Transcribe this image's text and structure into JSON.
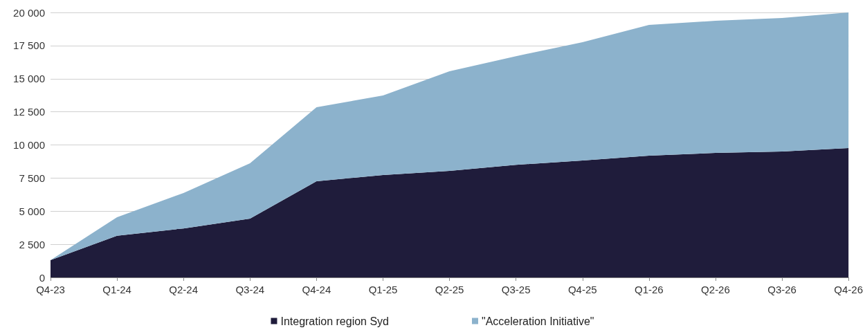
{
  "chart_data": {
    "type": "area",
    "stacked": true,
    "categories": [
      "Q4-23",
      "Q1-24",
      "Q2-24",
      "Q3-24",
      "Q4-24",
      "Q1-25",
      "Q2-25",
      "Q3-25",
      "Q4-25",
      "Q1-26",
      "Q2-26",
      "Q3-26",
      "Q4-26"
    ],
    "series": [
      {
        "name": "Integration region Syd",
        "color": "#1f1c3b",
        "values": [
          1300,
          3150,
          3700,
          4440,
          7260,
          7730,
          8040,
          8500,
          8830,
          9190,
          9400,
          9500,
          9760
        ]
      },
      {
        "name": "\"Acceleration Initiative\"",
        "color": "#8cb2cc",
        "values": [
          0,
          1390,
          2670,
          4180,
          5590,
          6000,
          7520,
          8200,
          8920,
          9870,
          9970,
          10080,
          10240
        ]
      }
    ],
    "ylim": [
      0,
      20000
    ],
    "yticks": [
      0,
      {
        "value": 2500,
        "label": "2 500"
      },
      {
        "value": 5000,
        "label": "5 000"
      },
      {
        "value": 7500,
        "label": "7 500"
      },
      {
        "value": 10000,
        "label": "10 000"
      },
      {
        "value": 12500,
        "label": "12 500"
      },
      {
        "value": 15000,
        "label": "15 000"
      },
      {
        "value": 17500,
        "label": "17 500"
      },
      {
        "value": 20000,
        "label": "20 000"
      }
    ],
    "grid": "y",
    "legend": "bottom"
  }
}
